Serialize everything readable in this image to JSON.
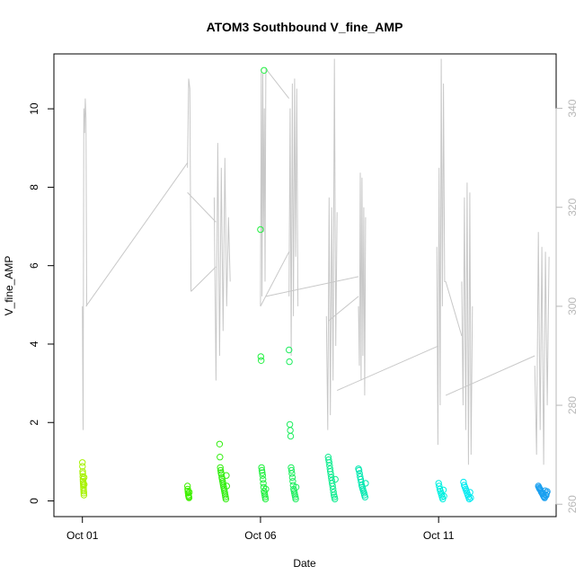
{
  "chart_data": {
    "type": "scatter",
    "title": "ATOM3 Southbound V_fine_AMP",
    "xlabel": "Date",
    "ylabel": "V_fine_AMP",
    "x_ticks": [
      "Oct 01",
      "Oct 06",
      "Oct 11"
    ],
    "x_tick_days": [
      1,
      6,
      11
    ],
    "xlim_days": [
      0.2,
      14.3
    ],
    "ylim": [
      -0.4,
      11.4
    ],
    "y_ticks": [
      0,
      2,
      4,
      6,
      8,
      10
    ],
    "right_axis": {
      "ylim": [
        257.5,
        351
      ],
      "ticks": [
        260,
        280,
        300,
        320,
        340
      ],
      "color": "#b8b8b8"
    },
    "grid": false,
    "scatter_groups": [
      {
        "color": "#a6f200",
        "day_range": [
          1.0,
          1.05
        ],
        "values": [
          0.98,
          0.88,
          0.75,
          0.7,
          0.62,
          0.55,
          0.5,
          0.45,
          0.4,
          0.35,
          0.3,
          0.25,
          0.2,
          0.15,
          0.6,
          0.42
        ]
      },
      {
        "color": "#40f000",
        "day_range": [
          3.95,
          4.0
        ],
        "values": [
          0.38,
          0.3,
          0.25,
          0.2,
          0.15,
          0.12,
          0.1,
          0.08,
          0.22
        ]
      },
      {
        "color": "#33ee10",
        "day_range": [
          4.85,
          5.05
        ],
        "values": [
          1.45,
          1.12,
          0.85,
          0.78,
          0.72,
          0.68,
          0.6,
          0.55,
          0.5,
          0.45,
          0.4,
          0.35,
          0.3,
          0.25,
          0.2,
          0.15,
          0.1,
          0.05,
          0.65,
          0.38
        ]
      },
      {
        "color": "#22f040",
        "day_range": [
          6.0,
          6.15
        ],
        "values": [
          6.92,
          3.68,
          3.58,
          0.85,
          0.78,
          0.72,
          0.65,
          0.55,
          0.45,
          0.35,
          0.25,
          0.2,
          0.15,
          0.1,
          0.05,
          0.3
        ]
      },
      {
        "color": "#20f040",
        "day_range": [
          6.1,
          6.12
        ],
        "values": [
          10.98
        ]
      },
      {
        "color": "#20ee60",
        "day_range": [
          6.8,
          7.0
        ],
        "values": [
          3.85,
          3.55,
          1.95,
          1.8,
          1.65,
          0.85,
          0.78,
          0.7,
          0.6,
          0.5,
          0.4,
          0.3,
          0.25,
          0.2,
          0.15,
          0.1,
          0.05,
          0.35
        ]
      },
      {
        "color": "#10ec90",
        "day_range": [
          7.9,
          8.1
        ],
        "values": [
          1.12,
          1.05,
          0.98,
          0.9,
          0.82,
          0.75,
          0.68,
          0.6,
          0.52,
          0.45,
          0.38,
          0.3,
          0.22,
          0.15,
          0.1,
          0.05,
          0.55
        ]
      },
      {
        "color": "#00e8b0",
        "day_range": [
          8.75,
          8.95
        ],
        "values": [
          0.82,
          0.78,
          0.7,
          0.62,
          0.55,
          0.48,
          0.4,
          0.35,
          0.3,
          0.25,
          0.2,
          0.15,
          0.1,
          0.45
        ]
      },
      {
        "color": "#00f0e0",
        "day_range": [
          11.0,
          11.15
        ],
        "values": [
          0.45,
          0.38,
          0.3,
          0.25,
          0.2,
          0.15,
          0.1,
          0.05,
          0.28,
          0.12
        ]
      },
      {
        "color": "#00eaf0",
        "day_range": [
          11.7,
          11.9
        ],
        "values": [
          0.48,
          0.4,
          0.35,
          0.3,
          0.25,
          0.2,
          0.15,
          0.1,
          0.05,
          0.22,
          0.08
        ]
      },
      {
        "color": "#1aa0f0",
        "day_range": [
          13.8,
          14.05
        ],
        "values": [
          0.38,
          0.35,
          0.32,
          0.3,
          0.28,
          0.25,
          0.22,
          0.2,
          0.18,
          0.15,
          0.12,
          0.1,
          0.08,
          0.26,
          0.16,
          0.14,
          0.2,
          0.24
        ]
      }
    ],
    "line_series": {
      "color": "#c8c8c8",
      "axis": "right",
      "bursts": [
        {
          "day_range": [
            1.0,
            1.12
          ],
          "values": [
            300,
            275,
            340,
            335,
            342,
            338,
            300
          ]
        },
        {
          "day_range": [
            3.95,
            4.05
          ],
          "values": [
            328,
            346,
            344,
            303
          ]
        },
        {
          "day_range": [
            4.7,
            5.15
          ],
          "values": [
            322,
            285,
            333,
            290,
            328,
            295,
            330,
            300,
            318,
            305
          ]
        },
        {
          "day_range": [
            6.0,
            6.15
          ],
          "values": [
            300,
            348,
            302,
            347,
            315,
            340,
            305,
            348
          ]
        },
        {
          "day_range": [
            6.8,
            7.05
          ],
          "values": [
            302,
            340,
            290,
            345,
            298,
            346,
            310,
            344,
            300
          ]
        },
        {
          "day_range": [
            7.85,
            8.15
          ],
          "values": [
            298,
            275,
            322,
            278,
            320,
            285,
            350,
            292,
            319
          ]
        },
        {
          "day_range": [
            8.75,
            8.95
          ],
          "values": [
            300,
            288,
            327,
            285,
            326,
            290,
            320,
            282,
            318
          ]
        },
        {
          "day_range": [
            10.95,
            11.2
          ],
          "values": [
            312,
            272,
            328,
            280,
            350,
            300,
            345,
            305,
            305
          ]
        },
        {
          "day_range": [
            11.65,
            11.95
          ],
          "values": [
            305,
            280,
            322,
            275,
            325,
            268,
            323,
            270,
            300
          ]
        },
        {
          "day_range": [
            13.7,
            14.1
          ],
          "values": [
            288,
            270,
            315,
            275,
            312,
            268,
            311,
            280,
            310
          ]
        }
      ],
      "connectors": [
        [
          [
            1.1,
            300
          ],
          [
            3.95,
            329
          ]
        ],
        [
          [
            4.05,
            303
          ],
          [
            4.75,
            308
          ]
        ],
        [
          [
            3.95,
            323
          ],
          [
            4.75,
            317
          ]
        ],
        [
          [
            6.0,
            300
          ],
          [
            6.8,
            311
          ]
        ],
        [
          [
            6.15,
            348
          ],
          [
            6.8,
            342
          ]
        ],
        [
          [
            6.15,
            302
          ],
          [
            8.75,
            306
          ]
        ],
        [
          [
            7.9,
            297
          ],
          [
            8.75,
            302
          ]
        ],
        [
          [
            8.15,
            283
          ],
          [
            11.0,
            292
          ]
        ],
        [
          [
            11.2,
            305
          ],
          [
            11.65,
            294
          ]
        ],
        [
          [
            11.2,
            282
          ],
          [
            13.7,
            290
          ]
        ]
      ]
    }
  }
}
